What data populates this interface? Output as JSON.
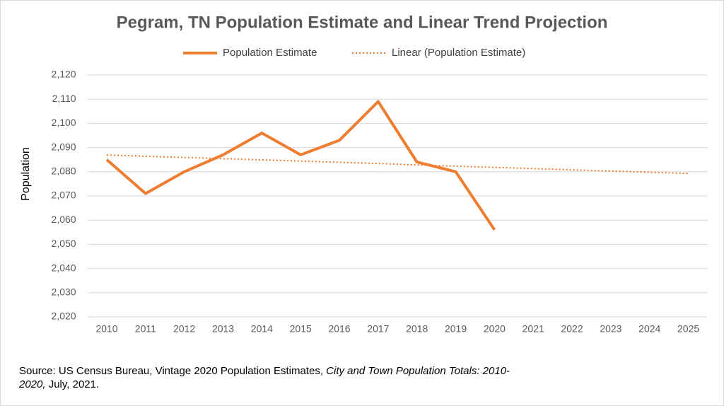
{
  "chart_data": {
    "type": "line",
    "title": "Pegram, TN Population Estimate and Linear Trend Projection",
    "y_label": "Population",
    "categories": [
      "2010",
      "2011",
      "2012",
      "2013",
      "2014",
      "2015",
      "2016",
      "2017",
      "2018",
      "2019",
      "2020",
      "2021",
      "2022",
      "2023",
      "2024",
      "2025"
    ],
    "series": [
      {
        "name": "Population Estimate",
        "color": "#ed7d31",
        "style": "solid",
        "values": [
          2085,
          2071,
          2080,
          2087,
          2096,
          2087,
          2093,
          2109,
          2084,
          2080,
          2056,
          null,
          null,
          null,
          null,
          null
        ]
      },
      {
        "name": "Linear (Population Estimate)",
        "color": "#ed7d31",
        "style": "dotted",
        "values": [
          2086.9,
          2086.4,
          2085.9,
          2085.4,
          2084.9,
          2084.4,
          2083.9,
          2083.4,
          2082.8,
          2082.3,
          2081.8,
          2081.3,
          2080.8,
          2080.3,
          2079.8,
          2079.3
        ]
      }
    ],
    "ylim": [
      2020,
      2120
    ],
    "yticks": [
      {
        "value": 2020,
        "label": "2,020"
      },
      {
        "value": 2030,
        "label": "2,030"
      },
      {
        "value": 2040,
        "label": "2,040"
      },
      {
        "value": 2050,
        "label": "2,050"
      },
      {
        "value": 2060,
        "label": "2,060"
      },
      {
        "value": 2070,
        "label": "2,070"
      },
      {
        "value": 2080,
        "label": "2,080"
      },
      {
        "value": 2090,
        "label": "2,090"
      },
      {
        "value": 2100,
        "label": "2,100"
      },
      {
        "value": 2110,
        "label": "2,110"
      },
      {
        "value": 2120,
        "label": "2,120"
      }
    ],
    "grid": true,
    "legend": "top",
    "source": [
      "Source:  US Census Bureau, Vintage 2020 Population Estimates, ",
      "City and Town Population Totals: 2010-2020,",
      " July, 2021."
    ]
  }
}
